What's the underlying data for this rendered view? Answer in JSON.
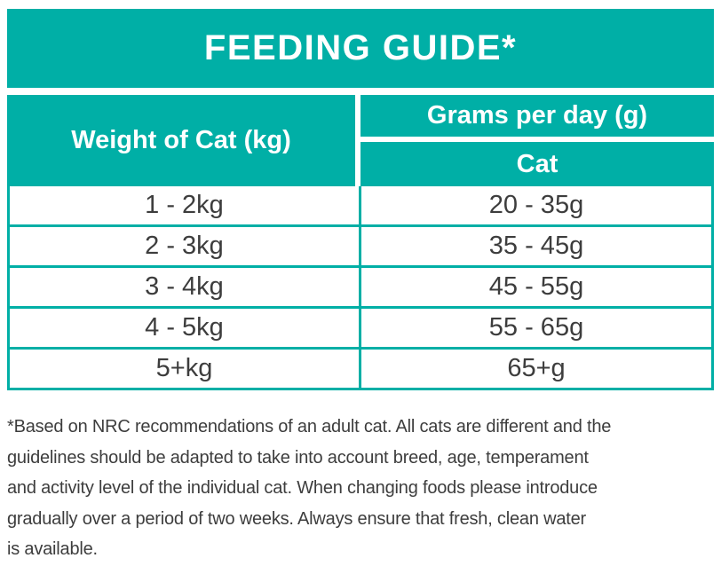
{
  "colors": {
    "teal": "#00afa6",
    "text_dark": "#3d3d3d",
    "header_text": "#ffffff",
    "background": "#ffffff"
  },
  "title": "FEEDING GUIDE*",
  "table": {
    "col_weight_header": "Weight of Cat (kg)",
    "col_grams_header": "Grams per day (g)",
    "col_grams_subheader": "Cat",
    "rows": [
      {
        "weight": "1 - 2kg",
        "grams": "20 - 35g"
      },
      {
        "weight": "2 - 3kg",
        "grams": "35 - 45g"
      },
      {
        "weight": "3 - 4kg",
        "grams": "45 - 55g"
      },
      {
        "weight": "4 - 5kg",
        "grams": "55 - 65g"
      },
      {
        "weight": "5+kg",
        "grams": "65+g"
      }
    ]
  },
  "footnote": {
    "lines": [
      "*Based on NRC recommendations of an adult cat. All cats are different and the",
      "guidelines should be adapted to take into account breed, age, temperament",
      "and activity level of the individual cat. When changing foods please introduce",
      "gradually over a period of two weeks. Always ensure that fresh, clean water",
      "is available."
    ]
  }
}
